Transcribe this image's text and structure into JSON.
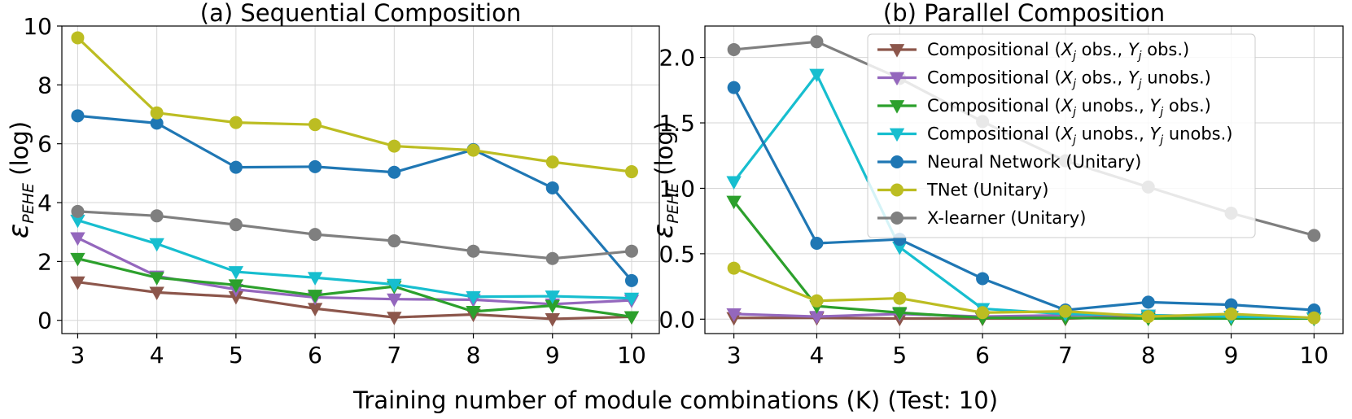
{
  "xlabel": "Training number of module combinations (K) (Test: 10)",
  "series_colors": {
    "Compositional (X_j obs., Y_j obs.)": "#8c564b",
    "Compositional (X_j obs., Y_j unobs.)": "#9467bd",
    "Compositional (X_j unobs., Y_j obs.)": "#2ca02c",
    "Compositional (X_j unobs., Y_j unobs.)": "#17becf",
    "Neural Network (Unitary)": "#1f77b4",
    "TNet (Unitary)": "#bcbd22",
    "X-learner (Unitary)": "#7f7f7f"
  },
  "legend": [
    {
      "prefix": "Compositional (",
      "x": "X",
      "xsub": "j",
      "mid": " obs., ",
      "y": "Y",
      "ysub": "j",
      "suffix": " obs.)",
      "marker": "triangle-down"
    },
    {
      "prefix": "Compositional (",
      "x": "X",
      "xsub": "j",
      "mid": " obs., ",
      "y": "Y",
      "ysub": "j",
      "suffix": " unobs.)",
      "marker": "triangle-down"
    },
    {
      "prefix": "Compositional (",
      "x": "X",
      "xsub": "j",
      "mid": " unobs., ",
      "y": "Y",
      "ysub": "j",
      "suffix": " obs.)",
      "marker": "triangle-down"
    },
    {
      "prefix": "Compositional (",
      "x": "X",
      "xsub": "j",
      "mid": " unobs., ",
      "y": "Y",
      "ysub": "j",
      "suffix": " unobs.)",
      "marker": "triangle-down"
    },
    {
      "text": "Neural Network (Unitary)",
      "marker": "circle"
    },
    {
      "text": "TNet (Unitary)",
      "marker": "circle"
    },
    {
      "text": "X-learner (Unitary)",
      "marker": "circle"
    }
  ],
  "chart_data": [
    {
      "type": "line",
      "title": "(a) Sequential Composition",
      "ylabel_main": "ε",
      "ylabel_sub": "PEHE",
      "ylabel_suffix": " (log)",
      "x": [
        3,
        4,
        5,
        6,
        7,
        8,
        9,
        10
      ],
      "xlim": [
        2.8,
        10.35
      ],
      "ylim": [
        -0.45,
        10.0
      ],
      "yticks": [
        0,
        2,
        4,
        6,
        8,
        10
      ],
      "yticklabels": [
        "0",
        "2",
        "4",
        "6",
        "8",
        "10"
      ],
      "grid": true,
      "series": [
        {
          "name": "Compositional (X_j obs., Y_j obs.)",
          "marker": "triangle-down",
          "values": [
            1.3,
            0.95,
            0.8,
            0.4,
            0.1,
            0.2,
            0.05,
            0.12
          ]
        },
        {
          "name": "Compositional (X_j obs., Y_j unobs.)",
          "marker": "triangle-down",
          "values": [
            2.8,
            1.5,
            1.05,
            0.78,
            0.72,
            0.7,
            0.55,
            0.68
          ]
        },
        {
          "name": "Compositional (X_j unobs., Y_j obs.)",
          "marker": "triangle-down",
          "values": [
            2.1,
            1.45,
            1.2,
            0.85,
            1.15,
            0.3,
            0.5,
            0.12
          ]
        },
        {
          "name": "Compositional (X_j unobs., Y_j unobs.)",
          "marker": "triangle-down",
          "values": [
            3.4,
            2.6,
            1.65,
            1.45,
            1.22,
            0.8,
            0.82,
            0.75
          ]
        },
        {
          "name": "Neural Network (Unitary)",
          "marker": "circle",
          "values": [
            6.95,
            6.7,
            5.2,
            5.22,
            5.03,
            5.8,
            4.5,
            1.35
          ]
        },
        {
          "name": "TNet (Unitary)",
          "marker": "circle",
          "values": [
            9.6,
            7.05,
            6.72,
            6.65,
            5.92,
            5.78,
            5.38,
            5.05
          ]
        },
        {
          "name": "X-learner (Unitary)",
          "marker": "circle",
          "values": [
            3.7,
            3.55,
            3.25,
            2.92,
            2.7,
            2.35,
            2.1,
            2.35
          ]
        }
      ]
    },
    {
      "type": "line",
      "title": "(b) Parallel Composition",
      "ylabel_main": "ε",
      "ylabel_sub": "PEHE",
      "ylabel_suffix": " (log)",
      "x": [
        3,
        4,
        5,
        6,
        7,
        8,
        9,
        10
      ],
      "xlim": [
        2.65,
        10.35
      ],
      "ylim": [
        -0.11,
        2.24
      ],
      "yticks": [
        0.0,
        0.5,
        1.0,
        1.5,
        2.0
      ],
      "yticklabels": [
        "0.0",
        "0.5",
        "1.0",
        "1.5",
        "2.0"
      ],
      "grid": true,
      "legend_position": "upper right",
      "series": [
        {
          "name": "Compositional (X_j obs., Y_j obs.)",
          "marker": "triangle-down",
          "values": [
            0.01,
            0.01,
            0.005,
            0.005,
            0.005,
            0.02,
            0.02,
            0.005
          ]
        },
        {
          "name": "Compositional (X_j obs., Y_j unobs.)",
          "marker": "triangle-down",
          "values": [
            0.04,
            0.02,
            0.04,
            0.02,
            0.03,
            0.03,
            0.02,
            0.01
          ]
        },
        {
          "name": "Compositional (X_j unobs., Y_j obs.)",
          "marker": "triangle-down",
          "values": [
            0.9,
            0.1,
            0.05,
            0.01,
            0.01,
            0.005,
            0.005,
            0.005
          ]
        },
        {
          "name": "Compositional (X_j unobs., Y_j unobs.)",
          "marker": "triangle-down",
          "values": [
            1.05,
            1.87,
            0.55,
            0.08,
            0.04,
            0.03,
            0.02,
            0.01
          ]
        },
        {
          "name": "Neural Network (Unitary)",
          "marker": "circle",
          "values": [
            1.77,
            0.58,
            0.61,
            0.31,
            0.07,
            0.13,
            0.11,
            0.07
          ]
        },
        {
          "name": "TNet (Unitary)",
          "marker": "circle",
          "values": [
            0.39,
            0.14,
            0.16,
            0.05,
            0.06,
            0.02,
            0.04,
            0.01
          ]
        },
        {
          "name": "X-learner (Unitary)",
          "marker": "circle",
          "values": [
            2.06,
            2.12,
            1.84,
            1.51,
            1.21,
            1.01,
            0.81,
            0.64
          ]
        }
      ]
    }
  ]
}
